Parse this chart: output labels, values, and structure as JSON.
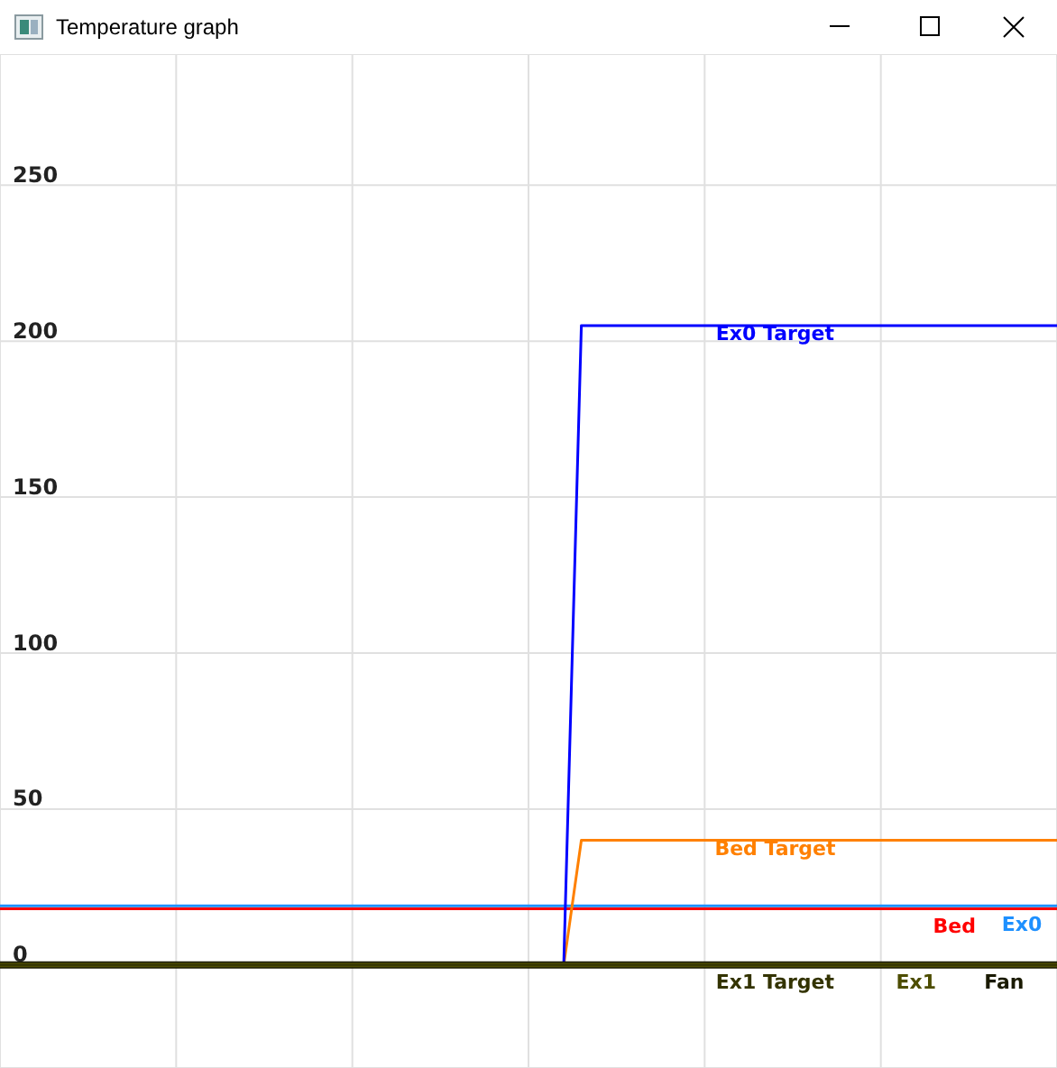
{
  "chart_data": {
    "type": "line",
    "title": "Temperature graph",
    "categories": [
      null,
      null,
      null,
      null,
      null,
      null,
      null,
      null,
      null,
      null,
      null,
      null,
      null,
      null,
      null,
      null,
      null,
      null,
      null,
      null,
      null,
      null,
      null,
      null,
      null,
      null,
      null,
      null,
      null,
      null,
      null,
      null,
      null,
      null,
      null,
      null,
      null,
      null,
      null,
      null,
      null,
      null,
      null,
      null,
      null,
      null,
      null,
      null,
      null,
      null,
      null,
      null,
      null,
      null,
      null,
      null,
      null,
      null,
      null,
      null,
      null
    ],
    "series": [
      {
        "name": "Bed",
        "color": "#ff0000",
        "values": [
          18,
          18,
          18,
          18,
          18,
          18,
          18,
          18,
          18,
          18,
          18,
          18,
          18,
          18,
          18,
          18,
          18,
          18,
          18,
          18,
          18,
          18,
          18,
          18,
          18,
          18,
          18,
          18,
          18,
          18,
          18,
          18,
          18,
          18,
          18,
          18,
          18,
          18,
          18,
          18,
          18,
          18,
          18,
          18,
          18,
          18,
          18,
          18,
          18,
          18,
          18,
          18,
          18,
          18,
          18,
          18,
          18,
          18,
          18,
          18,
          18
        ]
      },
      {
        "name": "Ex0",
        "color": "#1e90ff",
        "values": [
          19,
          19,
          19,
          19,
          19,
          19,
          19,
          19,
          19,
          19,
          19,
          19,
          19,
          19,
          19,
          19,
          19,
          19,
          19,
          19,
          19,
          19,
          19,
          19,
          19,
          19,
          19,
          19,
          19,
          19,
          19,
          19,
          19,
          19,
          19,
          19,
          19,
          19,
          19,
          19,
          19,
          19,
          19,
          19,
          19,
          19,
          19,
          19,
          19,
          19,
          19,
          19,
          19,
          19,
          19,
          19,
          19,
          19,
          19,
          19,
          19
        ]
      },
      {
        "name": "Bed Target",
        "color": "#ff8000",
        "values": [
          null,
          null,
          null,
          null,
          null,
          null,
          null,
          null,
          null,
          null,
          null,
          null,
          null,
          null,
          null,
          null,
          null,
          null,
          null,
          null,
          null,
          null,
          null,
          null,
          null,
          null,
          null,
          null,
          null,
          null,
          null,
          null,
          0,
          40,
          40,
          40,
          40,
          40,
          40,
          40,
          40,
          40,
          40,
          40,
          40,
          40,
          40,
          40,
          40,
          40,
          40,
          40,
          40,
          40,
          40,
          40,
          40,
          40,
          40,
          40,
          40
        ]
      },
      {
        "name": "Ex0 Target",
        "color": "#0000ff",
        "values": [
          null,
          null,
          null,
          null,
          null,
          null,
          null,
          null,
          null,
          null,
          null,
          null,
          null,
          null,
          null,
          null,
          null,
          null,
          null,
          null,
          null,
          null,
          null,
          null,
          null,
          null,
          null,
          null,
          null,
          null,
          null,
          null,
          0,
          205,
          205,
          205,
          205,
          205,
          205,
          205,
          205,
          205,
          205,
          205,
          205,
          205,
          205,
          205,
          205,
          205,
          205,
          205,
          205,
          205,
          205,
          205,
          205,
          205,
          205,
          205,
          205
        ]
      },
      {
        "name": "Fan",
        "color": "#1a1a00",
        "values": [
          0,
          0,
          0,
          0,
          0,
          0,
          0,
          0,
          0,
          0,
          0,
          0,
          0,
          0,
          0,
          0,
          0,
          0,
          0,
          0,
          0,
          0,
          0,
          0,
          0,
          0,
          0,
          0,
          0,
          0,
          0,
          0,
          0,
          0,
          0,
          0,
          0,
          0,
          0,
          0,
          0,
          0,
          0,
          0,
          0,
          0,
          0,
          0,
          0,
          0,
          0,
          0,
          0,
          0,
          0,
          0,
          0,
          0,
          0,
          0,
          0
        ]
      },
      {
        "name": "Ex1",
        "color": "#4d4d00",
        "values": [
          0,
          0,
          0,
          0,
          0,
          0,
          0,
          0,
          0,
          0,
          0,
          0,
          0,
          0,
          0,
          0,
          0,
          0,
          0,
          0,
          0,
          0,
          0,
          0,
          0,
          0,
          0,
          0,
          0,
          0,
          0,
          0,
          0,
          0,
          0,
          0,
          0,
          0,
          0,
          0,
          0,
          0,
          0,
          0,
          0,
          0,
          0,
          0,
          0,
          0,
          0,
          0,
          0,
          0,
          0,
          0,
          0,
          0,
          0,
          0,
          0
        ]
      },
      {
        "name": "Ex1 Target",
        "color": "#333300",
        "values": [
          0,
          0,
          0,
          0,
          0,
          0,
          0,
          0,
          0,
          0,
          0,
          0,
          0,
          0,
          0,
          0,
          0,
          0,
          0,
          0,
          0,
          0,
          0,
          0,
          0,
          0,
          0,
          0,
          0,
          0,
          0,
          0,
          0,
          0,
          0,
          0,
          0,
          0,
          0,
          0,
          0,
          0,
          0,
          0,
          0,
          0,
          0,
          0,
          0,
          0,
          0,
          0,
          0,
          0,
          0,
          0,
          0,
          0,
          0,
          0,
          0
        ]
      }
    ],
    "ylim": [
      -33,
      292
    ],
    "yticks": [
      0,
      50,
      100,
      150,
      200,
      250
    ],
    "grid": true,
    "legend": false,
    "marker": "none",
    "line_style": "solid"
  }
}
